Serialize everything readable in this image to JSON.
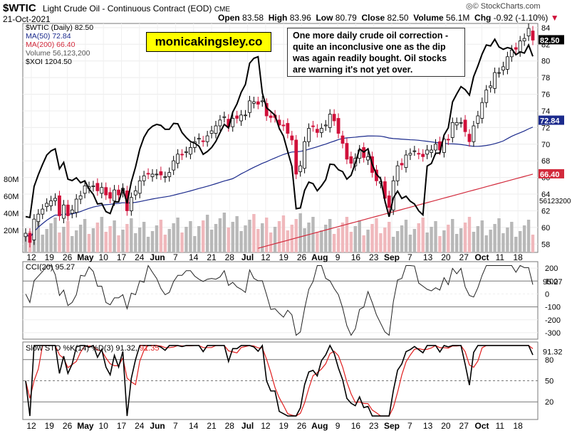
{
  "header": {
    "symbol": "$WTIC",
    "name": "Light Crude Oil - Continuous Contract (EOD)",
    "exchange": "CME",
    "date": "21-Oct-2021",
    "open_label": "Open",
    "open": "83.58",
    "high_label": "High",
    "high": "83.96",
    "low_label": "Low",
    "low": "80.79",
    "close_label": "Close",
    "close": "82.50",
    "volume_label": "Volume",
    "volume": "56.1M",
    "chg_label": "Chg",
    "chg": "-0.92 (-1.10%)",
    "source": "© StockCharts.com"
  },
  "legend": {
    "price": "$WTIC (Daily) 82.50",
    "ma50": "MA(50) 72.84",
    "ma200": "MA(200) 66.40",
    "volume": "Volume 56,123,200",
    "xoi": "$XOI 1204.50"
  },
  "brand_box": "monicakingsley.co",
  "annotation": "One more daily crude oil correction - quite an inconclusive one as the dip was again readily bought. Oil stocks are warning it's not yet over.",
  "colors": {
    "up": "#000000",
    "down": "#d0103a",
    "ma50": "#1b2a8c",
    "ma200": "#d22a3c",
    "vol_up": "#b8b8b8",
    "vol_down": "#f0b8bc",
    "cci_pos": "#3d7d3d",
    "cci_neg": "#8a4a44",
    "stoch_d": "#e01e1e"
  },
  "price_axis": {
    "ticks": [
      "84",
      "82",
      "80",
      "78",
      "76",
      "74",
      "72",
      "70",
      "68",
      "66",
      "64",
      "62",
      "60",
      "58"
    ],
    "last_close": "82.50",
    "ma50_tag": "72.84",
    "ma200_tag": "66.40",
    "vol_tag": "56123200"
  },
  "volume_axis": {
    "ticks": [
      "80M",
      "60M",
      "40M",
      "20M"
    ]
  },
  "cci_panel": {
    "title": "CCI(20) 95.27",
    "ticks": [
      "200",
      "100",
      "0",
      "-100",
      "-200",
      "-300"
    ],
    "last": "95.27"
  },
  "stoch_panel": {
    "title_prefix": "Slow STO %K(14) %D(3) 91.32,",
    "title_d": "91.35",
    "ticks": [
      "80",
      "50",
      "20"
    ],
    "last": "91.32"
  },
  "x_axis": {
    "labels": [
      "12",
      "19",
      "26",
      "May",
      "10",
      "17",
      "24",
      "Jun",
      "7",
      "14",
      "21",
      "28",
      "Jul",
      "12",
      "19",
      "26",
      "Aug",
      "9",
      "16",
      "23",
      "Sep",
      "7",
      "13",
      "20",
      "27",
      "Oct",
      "11",
      "18"
    ]
  },
  "chart_data": {
    "type": "line",
    "title": "$WTIC Light Crude Oil - Continuous Contract (EOD)",
    "ylim": [
      57,
      84.5
    ],
    "series": [
      {
        "name": "$WTIC",
        "close": [
          59.3,
          58.2,
          61.0,
          61.6,
          62.2,
          62.9,
          63.2,
          63.5,
          61.4,
          62.7,
          61.4,
          62.1,
          63.4,
          63.8,
          65.0,
          64.9,
          65.0,
          64.4,
          64.8,
          63.9,
          63.5,
          64.5,
          63.9,
          64.7,
          62.0,
          63.6,
          64.4,
          65.6,
          66.2,
          66.4,
          66.4,
          66.4,
          66.3,
          66.1,
          66.6,
          68.0,
          68.8,
          68.7,
          69.1,
          69.6,
          70.3,
          70.7,
          70.3,
          71.0,
          71.6,
          72.2,
          72.9,
          73.3,
          72.1,
          73.1,
          73.1,
          73.5,
          73.5,
          75.2,
          75.1,
          74.8,
          75.2,
          73.4,
          73.2,
          73.2,
          72.3,
          72.2,
          71.3,
          70.5,
          66.4,
          67.4,
          70.3,
          71.9,
          72.1,
          71.4,
          71.9,
          72.3,
          73.6,
          72.8,
          71.3,
          70.1,
          68.2,
          67.7,
          68.3,
          69.3,
          68.4,
          68.5,
          66.6,
          65.6,
          65.5,
          63.5,
          62.4,
          65.6,
          67.4,
          67.5,
          68.7,
          68.9,
          69.2,
          68.8,
          68.5,
          69.3,
          69.3,
          70.0,
          69.3,
          70.6,
          70.5,
          72.6,
          72.6,
          72.6,
          71.5,
          70.3,
          72.2,
          73.4,
          75.0,
          76.5,
          77.0,
          78.6,
          78.6,
          79.3,
          80.5,
          81.3,
          81.4,
          82.4,
          82.7,
          83.9,
          82.5
        ]
      },
      {
        "name": "MA(50)",
        "last": 72.84
      },
      {
        "name": "MA(200)",
        "last": 66.4
      },
      {
        "name": "$XOI",
        "last": 1204.5
      }
    ]
  }
}
